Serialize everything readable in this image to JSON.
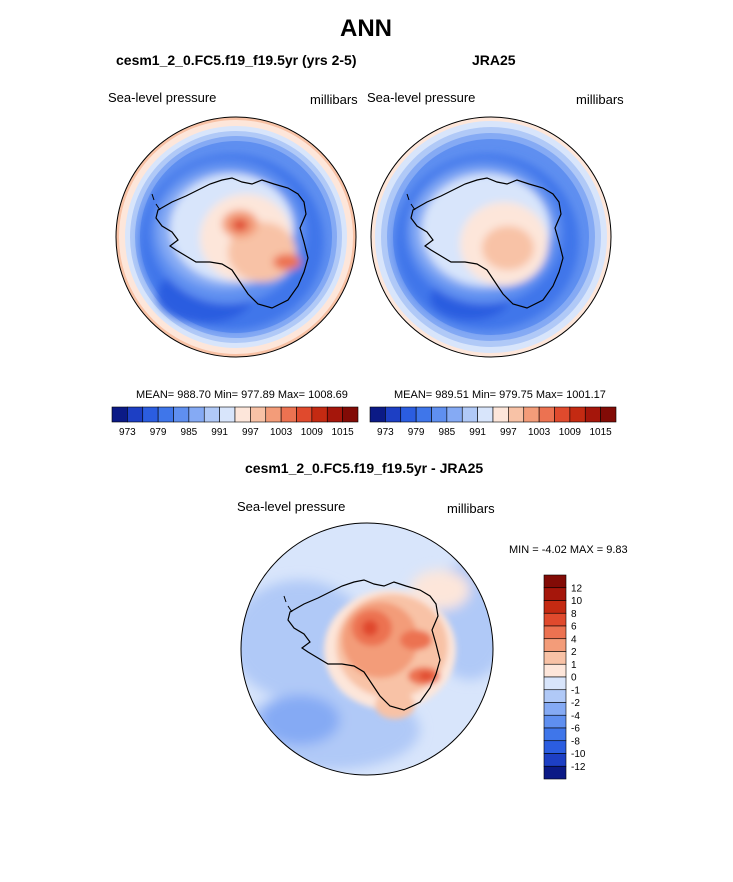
{
  "page": {
    "title": "ANN",
    "panel_left": {
      "case": "cesm1_2_0.FC5.f19_f19.5yr (yrs 2-5)",
      "field": "Sea-level pressure",
      "units": "millibars",
      "stats": "MEAN= 988.70  Min= 977.89  Max= 1008.69"
    },
    "panel_right": {
      "case": "JRA25",
      "field": "Sea-level pressure",
      "units": "millibars",
      "stats": "MEAN= 989.51  Min= 979.75  Max= 1001.17"
    },
    "panel_diff": {
      "case": "cesm1_2_0.FC5.f19_f19.5yr - JRA25",
      "field": "Sea-level pressure",
      "units": "millibars",
      "stats": "MIN =  -4.02 MAX =   9.83"
    }
  },
  "chart_data": [
    {
      "type": "heatmap",
      "projection": "polar stereographic (south pole)",
      "title": "cesm1_2_0.FC5.f19_f19.5yr (yrs 2-5)",
      "field": "Sea-level pressure",
      "units": "millibars",
      "mean": 988.7,
      "min": 977.89,
      "max": 1008.69,
      "colorbar_ticks": [
        "973",
        "979",
        "985",
        "991",
        "997",
        "1003",
        "1009",
        "1015"
      ],
      "colorbar_colors": [
        "#0b1a86",
        "#1d3fc4",
        "#2b5de0",
        "#3f76ea",
        "#5f8ff0",
        "#85aaf4",
        "#b0c9f7",
        "#d8e5fb",
        "#fde6da",
        "#f8c2a6",
        "#f39c79",
        "#ec7251",
        "#e04a2d",
        "#c42a12",
        "#a5160b",
        "#820b06"
      ]
    },
    {
      "type": "heatmap",
      "projection": "polar stereographic (south pole)",
      "title": "JRA25",
      "field": "Sea-level pressure",
      "units": "millibars",
      "mean": 989.51,
      "min": 979.75,
      "max": 1001.17,
      "colorbar_ticks": [
        "973",
        "979",
        "985",
        "991",
        "997",
        "1003",
        "1009",
        "1015"
      ],
      "colorbar_colors": [
        "#0b1a86",
        "#1d3fc4",
        "#2b5de0",
        "#3f76ea",
        "#5f8ff0",
        "#85aaf4",
        "#b0c9f7",
        "#d8e5fb",
        "#fde6da",
        "#f8c2a6",
        "#f39c79",
        "#ec7251",
        "#e04a2d",
        "#c42a12",
        "#a5160b",
        "#820b06"
      ]
    },
    {
      "type": "heatmap",
      "projection": "polar stereographic (south pole)",
      "title": "cesm1_2_0.FC5.f19_f19.5yr - JRA25",
      "field": "Sea-level pressure",
      "units": "millibars",
      "min": -4.02,
      "max": 9.83,
      "colorbar_ticks": [
        "12",
        "10",
        "8",
        "6",
        "4",
        "2",
        "1",
        "0",
        "-1",
        "-2",
        "-4",
        "-6",
        "-8",
        "-10",
        "-12"
      ],
      "colorbar_colors": [
        "#820b06",
        "#a5160b",
        "#c42a12",
        "#e04a2d",
        "#ec7251",
        "#f39c79",
        "#f8c2a6",
        "#fde6da",
        "#d8e5fb",
        "#b0c9f7",
        "#85aaf4",
        "#5f8ff0",
        "#3f76ea",
        "#2b5de0",
        "#1d3fc4",
        "#0b1a86"
      ]
    }
  ]
}
